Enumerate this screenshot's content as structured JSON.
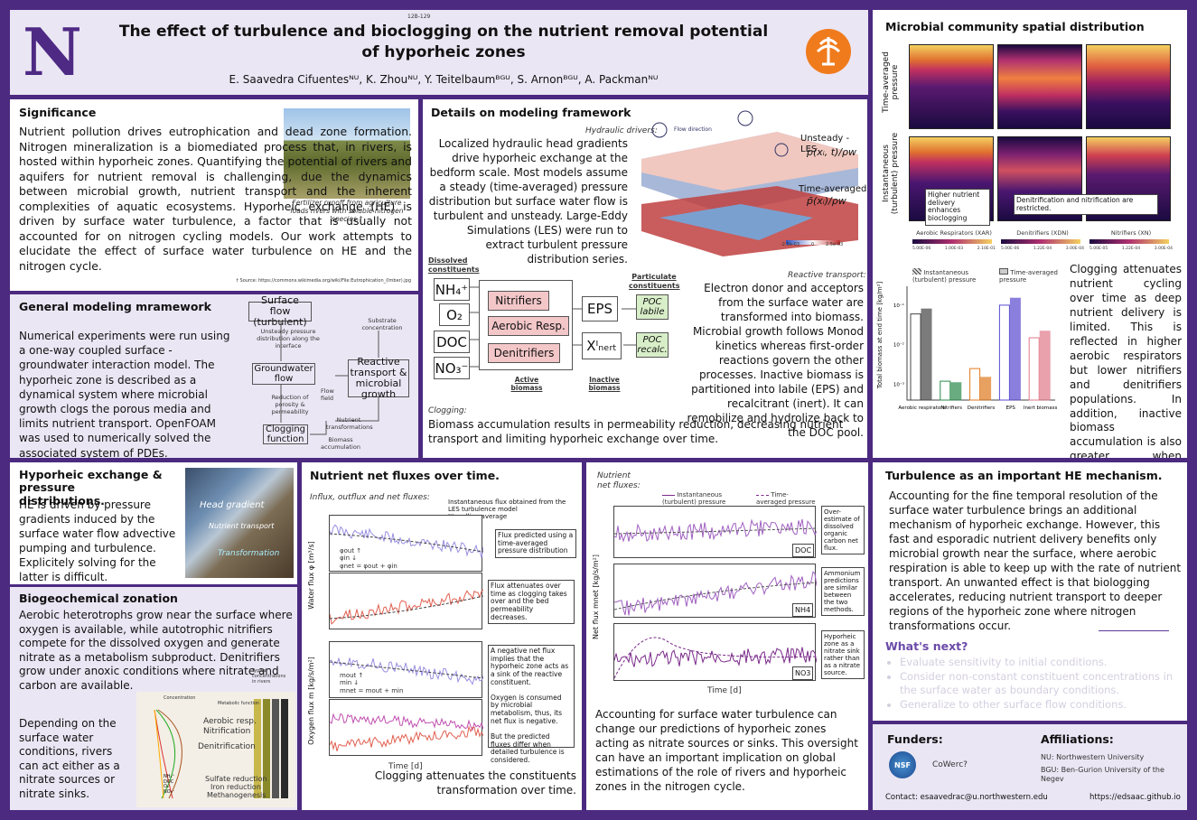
{
  "header": {
    "code": "12B-129",
    "title_line1": "The effect of turbulence and bioclogging on the nutrient removal potential",
    "title_line2": "of hyporheic zones",
    "authors": "E. Saavedra Cifuentesᴺᵁ, K. Zhouᴺᵁ, Y. Teitelbaumᴮᴳᵁ, S. Arnonᴮᴳᵁ, A. Packmanᴺᵁ",
    "logo_letter": "N"
  },
  "significance": {
    "heading": "Significance",
    "body": "Nutrient pollution drives eutrophication and dead zone formation. Nitrogen mineralization is a biomediated process that, in rivers, is hosted within hyporheic zones. Quantifying the potential of rivers and aquifers for nutrient removal is challenging, due the dynamics between microbial growth, nutrient transport and the inherent complexities of aquatic ecosystems. Hyporheic exchange (HE) is driven by surface water turbulence, a factor that is usually not accounted for on nitrogen cycling models. Our work attempts to elucidate the effect of surface water turbulence on HE and the nitrogen cycle.",
    "caption": "Fertilizer runoff from agriculture loads rivers with soluble nitrogen species.†",
    "source": "† Source: https://commons.wikimedia.org/wiki/File:Eutrophication_(Imber).jpg"
  },
  "general": {
    "heading": "General modeling mramework",
    "body": "Numerical experiments were run using a one-way coupled surface - groundwater interaction model. The hyporheic zone is described as a dynamical system where microbial growth clogs the porous media and limits nutrient transport. OpenFOAM was used to numerically solved the associated system of PDEs.",
    "surface": "Surface flow (turbulent)",
    "unsteady": "Unsteady pressure distribution along the interface",
    "substrate": "Substrate concentration",
    "gw": "Groundwater flow",
    "reactive": "Reactive transport & microbial growth",
    "flowfield": "Flow field",
    "reduction": "Reduction of porosity & permeability",
    "nutrient": "Nutrient transformations",
    "clogging": "Clogging function",
    "biomass": "Biomass accumulation"
  },
  "hyporheic": {
    "heading": "Hyporheic exchange & pressure distributions.",
    "body": "HE is driven by pressure gradients induced by the surface water flow advective pumping and turbulence. Explicitely solving for the latter is difficult.",
    "photo_labels": [
      "Head gradient",
      "Nutrient transport",
      "Transformation"
    ]
  },
  "biogeo": {
    "heading": "Biogeochemical zonation",
    "body": "Aerobic heterotrophs grow near the surface where oxygen is available, while autotrophic nitrifiers compete for the dissolved oxygen and generate nitrate as a metabolism subproduct. Denitrifiers grow under anoxic conditions where nitrate and carbon are available.",
    "body2": "Depending on the surface water conditions, rivers can act either as a nitrate sources or nitrate sinks.",
    "labels": {
      "concentration": "Concentration",
      "metabolic": "Metabolic function",
      "typical": "Typical concentrations in rivers",
      "aerobic": "Aerobic resp.",
      "nitrification": "Nitrification",
      "denitrification": "Denitrification",
      "sulfate": "Sulfate reduction",
      "iron": "Iron reduction",
      "methano": "Methanogenesis",
      "depth": "Depth"
    },
    "legend": [
      "NH₄⁺",
      "DOC",
      "O₂",
      "NO₃⁻"
    ]
  },
  "details": {
    "heading": "Details on modeling framework",
    "hyd_label": "Hydraulic drivers:",
    "hyd_body": "Localized hydraulic head gradients drive hyporheic exchange at the bedform scale. Most models assume a steady (time-averaged) pressure distribution but surface water flow is turbulent and unsteady. Large-Eddy Simulations (LES) were run to extract turbulent pressure distribution series.",
    "flow_dir": "Flow direction",
    "unsteady": "Unsteady - LES",
    "unsteady_eq": "p(xᵢ, t)/ρw",
    "tavg": "Time-averaged",
    "tavg_eq": "p̄(xᵢ)/ρw",
    "cbar": [
      "-2.5e-03",
      "0",
      "2.5e-03"
    ],
    "dissolved": "Dissolved constituents",
    "particulate": "Particulate constituents",
    "mols": [
      "NH₄⁺",
      "O₂",
      "DOC",
      "NO₃⁻"
    ],
    "bio": [
      "Nitrifiers",
      "Aerobic Resp.",
      "Denitrifiers"
    ],
    "eps": "EPS",
    "xinert": "Xᴵₙₑᵣₜ",
    "poc1": "POC labile",
    "poc2": "POC recalc.",
    "active": "Active biomass",
    "inactive": "Inactive biomass",
    "react_label": "Reactive transport:",
    "react_body": "Electron donor and acceptors from the surface water are transformed into biomass. Microbial growth follows Monod kinetics whereas first-order reactions govern the other processes. Inactive biomass is partitioned into labile (EPS) and recalcitrant (inert). It can remobilize and hydrolize back to the DOC pool.",
    "clog_label": "Clogging:",
    "clog_body": "Biomass accumulation results in permeability reduction, decreasing nutrient transport and limiting hyporheic exchange over time."
  },
  "microbial": {
    "heading": "Microbial community spatial distribution",
    "row1": "Time-averaged pressure",
    "row2": "Instantaneous (turbulent) pressure",
    "note1": "Higher nutrient delivery enhances bioclogging",
    "note2": "Denitrification and nitrification are restricted.",
    "cols": [
      "Aerobic Respirators (XAR)",
      "Denitrifiers (XDN)",
      "Nitrifiers (XN)"
    ],
    "cbar_ticks": [
      [
        "5.00E-06",
        "1.00E-03",
        "2.10E-01"
      ],
      [
        "5.00E-06",
        "1.22E-04",
        "3.00E-04"
      ],
      [
        "5.00E-05",
        "1.22E-04",
        "3.00E-04"
      ]
    ],
    "legend": [
      "Instantaneous (turbulent) pressure",
      "Time-averaged pressure"
    ],
    "ylabel": "Total biomass at end time [kg/m²]",
    "body": "Clogging attenuates nutrient cycling over time as deep nutrient delivery is limited. This is reflected in higher aerobic respirators but lower nitrifiers and denitrifiers populations. In addition, inactive biomass accumulation is also greater when considering the surface water turbulence in detail."
  },
  "chart_data": {
    "type": "bar",
    "categories": [
      "Aerobic respirators",
      "Nitrifiers",
      "Denitrifiers",
      "EPS",
      "Inert biomass"
    ],
    "series": [
      {
        "name": "Instantaneous (turbulent) pressure",
        "values": [
          0.06,
          0.0012,
          0.0025,
          0.1,
          0.015
        ]
      },
      {
        "name": "Time-averaged pressure",
        "values": [
          0.08,
          0.0011,
          0.0015,
          0.15,
          0.022
        ]
      }
    ],
    "ylabel": "Total biomass at end time [kg/m²]",
    "ylog": true,
    "yticks": [
      "10⁻¹",
      "10⁻²",
      "10⁻³"
    ]
  },
  "fluxes": {
    "heading": "Nutrient net fluxes over time.",
    "sub": "Influx, outflux and net fluxes:",
    "leg1": "Instantaneous flux obtained from the LES turbulence model",
    "leg2": "It's rolling average",
    "leg3": "Flux predicted using a time-averaged pressure distribution",
    "n1": "Flux attenuates over time as clogging takes over and the bed permeability decreases.",
    "n2": "A negative net flux implies that the hyporheic zone acts as a sink of the reactive constituent.",
    "n3": "Oxygen is consumed by microbial metabolism, thus, its net flux is negative.",
    "n4": "But the predicted fluxes differ when detailed turbulence is considered.",
    "ylab1": "Water flux  φ [m³/s]",
    "ylab2": "Oxygen flux  m [kg/s/m²]",
    "xlab": "Time [d]",
    "foot": "Clogging attenuates the constituents transformation over time.",
    "l1": [
      "φout ↑",
      "φin ↓",
      "φnet = φout + φin"
    ],
    "l2": [
      "mout ↑",
      "min ↓",
      "mnet = mout + min"
    ]
  },
  "net": {
    "sub": "Nutrient net fluxes:",
    "leg": [
      "Instantaneous (turbulent) pressure",
      "Time-averaged pressure"
    ],
    "tags": [
      "DOC",
      "NH4",
      "NO3"
    ],
    "n1": "Over-estimate of dissolved organic carbon net flux.",
    "n2": "Ammonium predictions are similar between the two methods.",
    "n3": "Hyporheic zone as a nitrate sink rather than as a nitrate source.",
    "ylab": "Net flux  mnet [kg/s/m²]",
    "xlab": "Time [d]",
    "body": "Accounting for surface water turbulence can change our predictions of hyporheic zones acting as nitrate sources or sinks. This oversight can have an important implication on global estimations of the role of rivers and hyporheic zones in the nitrogen cycle."
  },
  "turb": {
    "heading": "Turbulence as an important HE mechanism.",
    "body": "Accounting for the fine temporal resolution of the surface water turbulence brings an additional mechanism of hyporheic exchange. However, this fast and esporadic nutrient delivery benefits only microbial growth near the surface, where aerobic respiration is able to keep up with the rate of nutrient transport. An unwanted effect is that biologging accelerates, reducing nutrient transport to deeper regions of the hyporheic zone where nitrogen transformations occur.",
    "next_heading": "What's next?",
    "next": [
      "Evaluate sensitivity to initial conditions.",
      "Consider non-constant constituent concentrations in the surface water as boundary conditions.",
      "Generalize to other surface flow conditions."
    ]
  },
  "footer": {
    "funders": "Funders:",
    "cowerc": "CoWerc?",
    "nsf": "NSF",
    "affil": "Affiliations:",
    "nu": "NU: Northwestern University",
    "bgu": "BGU: Ben-Gurion University of the Negev",
    "contact": "Contact: esaavedrac@u.northwestern.edu",
    "web": "https://edsaac.github.io"
  }
}
